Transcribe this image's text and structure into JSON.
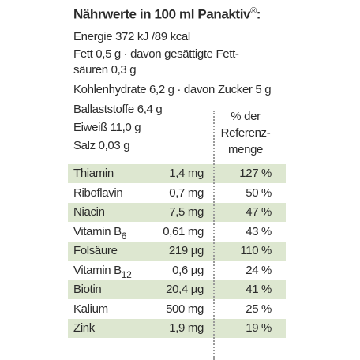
{
  "title": "Nährwerte in 100 ml Panaktiv",
  "title_sup": "®",
  "title_end": ":",
  "lines": [
    "Energie 372 kJ /89 kcal",
    "Fett 0,5 g · davon gesättigte Fett-",
    "säuren 0,3 g",
    "Kohlenhydrate 6,2 g · davon Zucker 5 g",
    "Ballaststoffe 6,4 g",
    "Eiweiß 11,0 g",
    "Salz 0,03 g"
  ],
  "ref_header": [
    "% der",
    "Referenz-",
    "menge"
  ],
  "rows": [
    {
      "name": "Thiamin",
      "amount": "1,4 mg",
      "percent": "127 %"
    },
    {
      "name": "Riboflavin",
      "amount": "0,7 mg",
      "percent": "50 %"
    },
    {
      "name": "Niacin",
      "amount": "7,5 mg",
      "percent": "47 %"
    },
    {
      "name": "Vitamin B",
      "sub": "6",
      "amount": "0,61 mg",
      "percent": "43 %"
    },
    {
      "name": "Folsäure",
      "amount": "219 µg",
      "percent": "110 %"
    },
    {
      "name": "Vitamin B",
      "sub": "12",
      "amount": "0,6 µg",
      "percent": "24 %"
    },
    {
      "name": "Biotin",
      "amount": "20,4 µg",
      "percent": "41 %"
    },
    {
      "name": "Kalium",
      "amount": "500 mg",
      "percent": "25 %"
    },
    {
      "name": "Zink",
      "amount": "1,9 mg",
      "percent": "19 %"
    }
  ]
}
